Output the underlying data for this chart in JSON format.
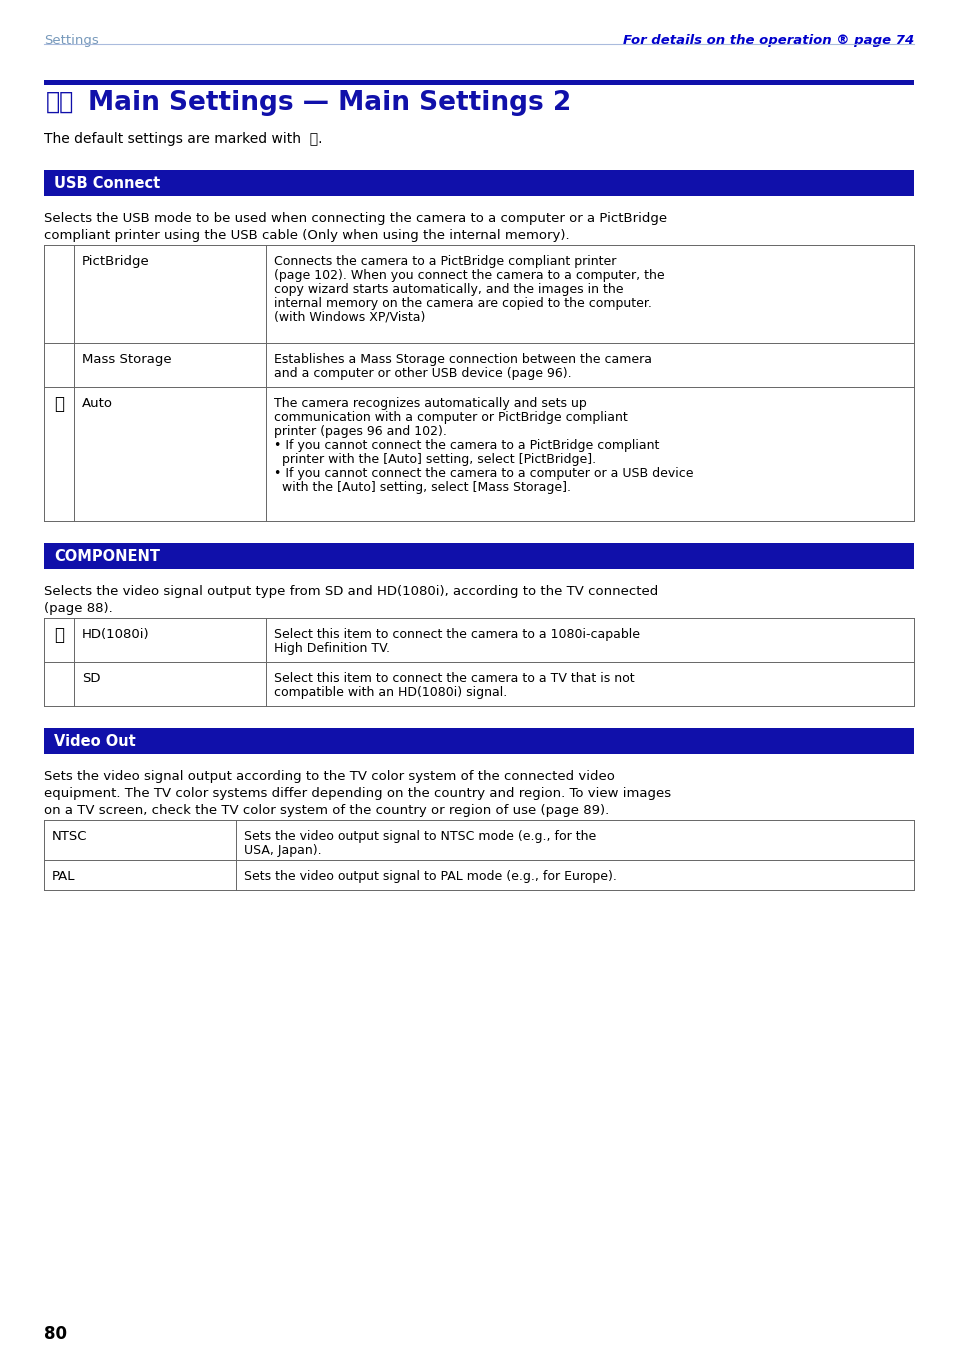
{
  "page_bg": "#ffffff",
  "header_left": "Settings",
  "header_right": "For details on the operation ® page 74",
  "header_left_color": "#7799bb",
  "header_right_color": "#0000cc",
  "title_bar_color": "#1010aa",
  "title_color": "#1010aa",
  "default_text": "The default settings are marked with",
  "section1_label": "USB Connect",
  "section1_label_color": "#ffffff",
  "section1_bg": "#1010aa",
  "section1_desc_line1": "Selects the USB mode to be used when connecting the camera to a computer or a PictBridge",
  "section1_desc_line2": "compliant printer using the USB cable (Only when using the internal memory).",
  "usb_rows": [
    {
      "mark": "",
      "label": "PictBridge",
      "desc": "Connects the camera to a PictBridge compliant printer\n(page 102). When you connect the camera to a computer, the\ncopy wizard starts automatically, and the images in the\ninternal memory on the camera are copied to the computer.\n(with Windows XP/Vista)"
    },
    {
      "mark": "",
      "label": "Mass Storage",
      "desc": "Establishes a Mass Storage connection between the camera\nand a computer or other USB device (page 96)."
    },
    {
      "mark": "check",
      "label": "Auto",
      "desc": "The camera recognizes automatically and sets up\ncommunication with a computer or PictBridge compliant\nprinter (pages 96 and 102).\n• If you cannot connect the camera to a PictBridge compliant\n  printer with the [Auto] setting, select [PictBridge].\n• If you cannot connect the camera to a computer or a USB device\n  with the [Auto] setting, select [Mass Storage]."
    }
  ],
  "section2_label": "COMPONENT",
  "section2_label_color": "#ffffff",
  "section2_bg": "#1010aa",
  "section2_desc_line1": "Selects the video signal output type from SD and HD(1080i), according to the TV connected",
  "section2_desc_line2": "(page 88).",
  "comp_rows": [
    {
      "mark": "check",
      "label": "HD(1080i)",
      "desc": "Select this item to connect the camera to a 1080i-capable\nHigh Definition TV."
    },
    {
      "mark": "",
      "label": "SD",
      "desc": "Select this item to connect the camera to a TV that is not\ncompatible with an HD(1080i) signal."
    }
  ],
  "section3_label": "Video Out",
  "section3_label_color": "#ffffff",
  "section3_bg": "#1010aa",
  "section3_desc_line1": "Sets the video signal output according to the TV color system of the connected video",
  "section3_desc_line2": "equipment. The TV color systems differ depending on the country and region. To view images",
  "section3_desc_line3": "on a TV screen, check the TV color system of the country or region of use (page 89).",
  "video_rows": [
    {
      "mark": "",
      "label": "NTSC",
      "desc": "Sets the video output signal to NTSC mode (e.g., for the\nUSA, Japan)."
    },
    {
      "mark": "",
      "label": "PAL",
      "desc": "Sets the video output signal to PAL mode (e.g., for Europe)."
    }
  ],
  "page_number": "80",
  "text_color": "#000000",
  "table_border_color": "#666666"
}
